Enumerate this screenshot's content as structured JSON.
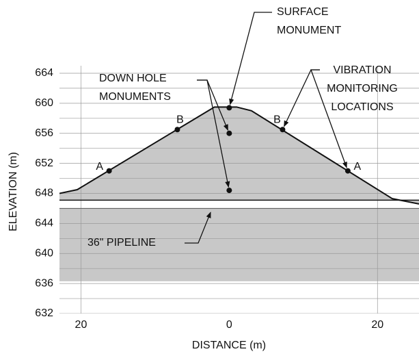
{
  "chart_data": {
    "type": "cross-section",
    "ylabel": "ELEVATION (m)",
    "xlabel": "DISTANCE (m)",
    "xlim": [
      -22.9,
      25.6
    ],
    "ylim": [
      632,
      665
    ],
    "xticks": [
      {
        "value": -20,
        "label": "20"
      },
      0,
      20
    ],
    "yticks": [
      632,
      636,
      640,
      644,
      648,
      652,
      656,
      660,
      664
    ],
    "minor_yticks": [
      634,
      638,
      642,
      646,
      650,
      654,
      658,
      662
    ],
    "grid": true,
    "surface": {
      "x": [
        -22.9,
        -20.5,
        -2,
        1,
        3,
        22,
        25.6
      ],
      "y": [
        648,
        648.5,
        659.5,
        659.5,
        659,
        647.3,
        646.6
      ],
      "color": "#c8c8c8"
    },
    "embankment_base": 647.1,
    "foundation": [
      636.3,
      646
    ],
    "points": {
      "x": [
        -16.2,
        -7,
        0,
        0,
        0,
        7.2,
        16
      ],
      "y": [
        651,
        656.5,
        659.4,
        656,
        648.4,
        656.5,
        651
      ],
      "labels": [
        "A",
        "B",
        null,
        null,
        null,
        "B",
        "A"
      ]
    },
    "annotations": [
      {
        "lines": [
          "SURFACE",
          "MONUMENT"
        ],
        "targets": [
          2
        ]
      },
      {
        "lines": [
          "DOWN HOLE",
          "MONUMENTS"
        ],
        "targets": [
          3,
          4
        ]
      },
      {
        "lines": [
          "VIBRATION",
          "MONITORING",
          "LOCATIONS"
        ],
        "targets": [
          5,
          6
        ]
      },
      {
        "lines": [
          "36\" PIPELINE"
        ]
      }
    ]
  }
}
